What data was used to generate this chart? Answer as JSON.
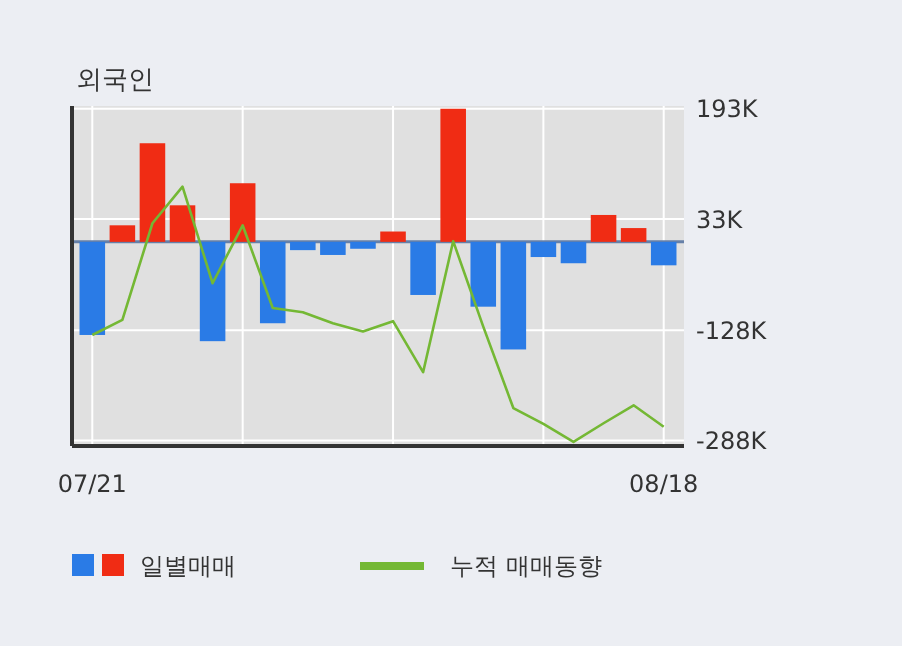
{
  "chart_data": {
    "type": "bar",
    "title": "외국인",
    "categories": [
      "07/21",
      null,
      null,
      null,
      null,
      null,
      null,
      null,
      null,
      null,
      null,
      null,
      null,
      null,
      null,
      null,
      null,
      null,
      null,
      "08/18"
    ],
    "series": [
      {
        "name": "일별매매",
        "colors": [
          "#2a7be6",
          "#f02c14",
          "#f02c14",
          "#f02c14",
          "#2a7be6",
          "#f02c14",
          "#2a7be6",
          "#2a7be6",
          "#2a7be6",
          "#2a7be6",
          "#f02c14",
          "#2a7be6",
          "#f02c14",
          "#2a7be6",
          "#2a7be6",
          "#2a7be6",
          "#2a7be6",
          "#f02c14",
          "#f02c14",
          "#2a7be6"
        ],
        "values": [
          -135,
          24,
          143,
          53,
          -144,
          85,
          -118,
          -12,
          -19,
          -10,
          15,
          -77,
          193,
          -94,
          -156,
          -22,
          -31,
          39,
          20,
          -34
        ]
      },
      {
        "name": "누적 매매동향",
        "type": "line",
        "color": "#74b834",
        "values": [
          -135,
          -113,
          27,
          80,
          -60,
          24,
          -96,
          -102,
          -118,
          -130,
          -115,
          -189,
          1,
          -123,
          -241,
          -264,
          -290,
          -263,
          -237,
          -268
        ]
      }
    ],
    "ylim": [
      -296,
      197
    ],
    "yticks": [
      {
        "value": 193,
        "label": "193K"
      },
      {
        "value": 33,
        "label": "33K"
      },
      {
        "value": -128,
        "label": "-128K"
      },
      {
        "value": -288,
        "label": "-288K"
      }
    ],
    "ref_lines": [
      {
        "axis": "y",
        "value": 0,
        "color": "#6680a8"
      }
    ],
    "grid": true,
    "legend": "bottom"
  }
}
